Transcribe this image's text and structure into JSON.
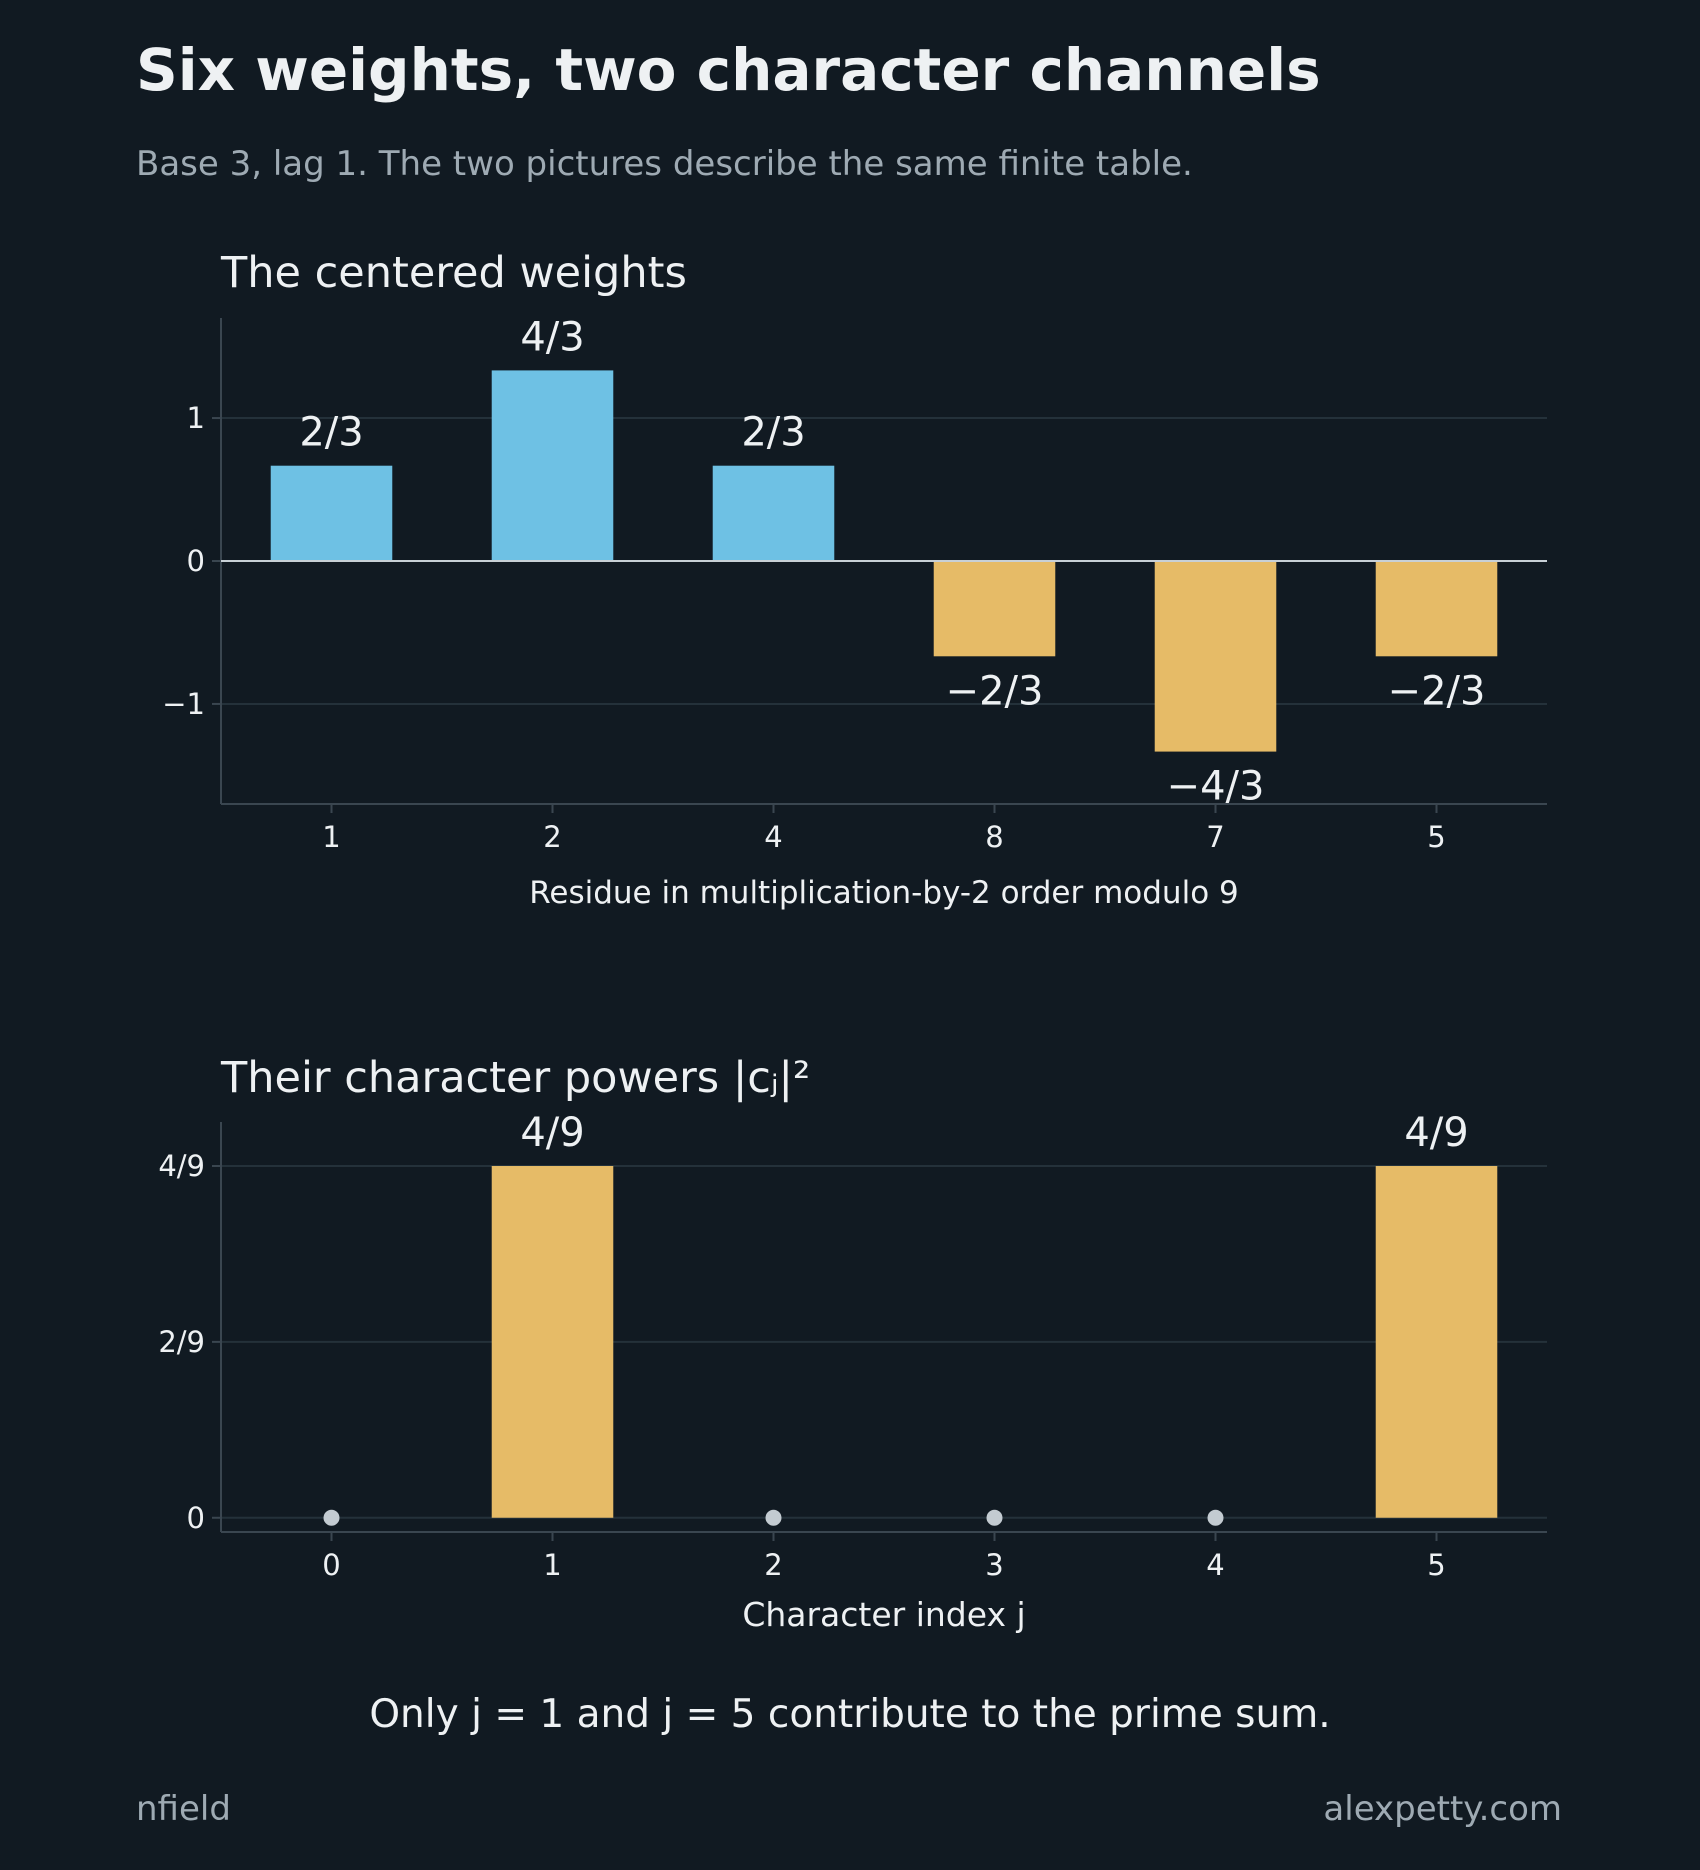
{
  "header": {
    "title": "Six weights, two character channels",
    "subtitle": "Base 3, lag 1. The two pictures describe the same finite table."
  },
  "colors": {
    "background": "#111a22",
    "positive": "#6ec1e4",
    "negative": "#e6bb67",
    "grid": "#24313a",
    "zero_line": "#c8d0d6",
    "axis": "#3a4650",
    "text": "#eef1f3",
    "muted": "#9eaab3",
    "dot": "#c3cbd1"
  },
  "note": "Only j = 1 and j = 5 contribute to the prime sum.",
  "footer": {
    "left": "nfield",
    "right": "alexpetty.com"
  },
  "chart_data": [
    {
      "type": "bar",
      "title": "The centered weights",
      "xlabel": "Residue in multiplication-by-2 order modulo 9",
      "ylabel": "",
      "categories": [
        "1",
        "2",
        "4",
        "8",
        "7",
        "5"
      ],
      "values": [
        0.6667,
        1.3333,
        0.6667,
        -0.6667,
        -1.3333,
        -0.6667
      ],
      "value_labels": [
        "2/3",
        "4/3",
        "2/3",
        "−2/3",
        "−4/3",
        "−2/3"
      ],
      "yticks": [
        1,
        0,
        -1
      ],
      "ytick_labels": [
        "1",
        "0",
        "−1"
      ],
      "ylim": [
        -1.7,
        1.7
      ],
      "grid": true
    },
    {
      "type": "bar",
      "title": "Their character powers  |cⱼ|²",
      "xlabel": "Character index j",
      "ylabel": "",
      "categories": [
        "0",
        "1",
        "2",
        "3",
        "4",
        "5"
      ],
      "values": [
        0,
        0.4444,
        0,
        0,
        0,
        0.4444
      ],
      "value_labels": [
        "",
        "4/9",
        "",
        "",
        "",
        "4/9"
      ],
      "zero_markers": [
        true,
        false,
        true,
        true,
        true,
        false
      ],
      "yticks": [
        0.4444,
        0.2222,
        0
      ],
      "ytick_labels": [
        "4/9",
        "2/9",
        "0"
      ],
      "ylim": [
        -0.018,
        0.5
      ],
      "grid": true
    }
  ]
}
